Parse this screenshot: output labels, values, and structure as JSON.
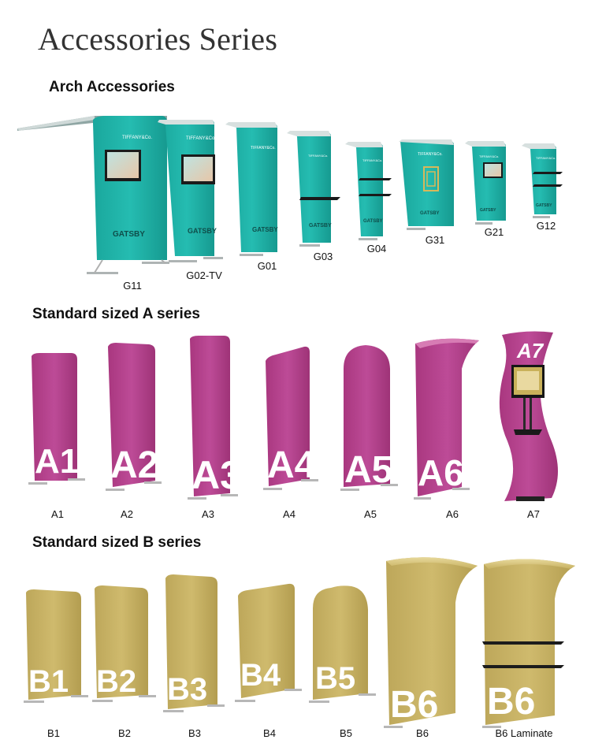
{
  "title": "Accessories Series",
  "sections": {
    "arch": "Arch Accessories",
    "a": "Standard sized A series",
    "b": "Standard sized B series"
  },
  "colors": {
    "teal": "#1fb3a8",
    "magenta": "#b5428e",
    "gold": "#c9b467"
  },
  "arch_items": [
    {
      "code": "G11",
      "brand": "TIFFANY&Co.",
      "logo": "GATSBY"
    },
    {
      "code": "G02-TV",
      "brand": "TIFFANY&Co.",
      "logo": "GATSBY"
    },
    {
      "code": "G01",
      "brand": "TIFFANY&Co.",
      "logo": "GATSBY"
    },
    {
      "code": "G03",
      "brand": "TIFFANY&Co.",
      "logo": "GATSBY"
    },
    {
      "code": "G04",
      "brand": "TIFFANY&Co.",
      "logo": "GATSBY"
    },
    {
      "code": "G31",
      "brand": "TIFFANY&Co.",
      "logo": "GATSBY"
    },
    {
      "code": "G21",
      "brand": "TIFFANY&Co.",
      "logo": "GATSBY"
    },
    {
      "code": "G12",
      "brand": "TIFFANY&Co.",
      "logo": "GATSBY"
    }
  ],
  "a_items": [
    {
      "code": "A1",
      "panel_text": "A1"
    },
    {
      "code": "A2",
      "panel_text": "A2"
    },
    {
      "code": "A3",
      "panel_text": "A3"
    },
    {
      "code": "A4",
      "panel_text": "A4"
    },
    {
      "code": "A5",
      "panel_text": "A5"
    },
    {
      "code": "A6",
      "panel_text": "A6"
    },
    {
      "code": "A7",
      "panel_text": "A7"
    }
  ],
  "b_items": [
    {
      "code": "B1",
      "panel_text": "B1"
    },
    {
      "code": "B2",
      "panel_text": "B2"
    },
    {
      "code": "B3",
      "panel_text": "B3"
    },
    {
      "code": "B4",
      "panel_text": "B4"
    },
    {
      "code": "B5",
      "panel_text": "B5"
    },
    {
      "code": "B6",
      "panel_text": "B6"
    },
    {
      "code": "B6 Laminate",
      "panel_text": "B6"
    }
  ]
}
